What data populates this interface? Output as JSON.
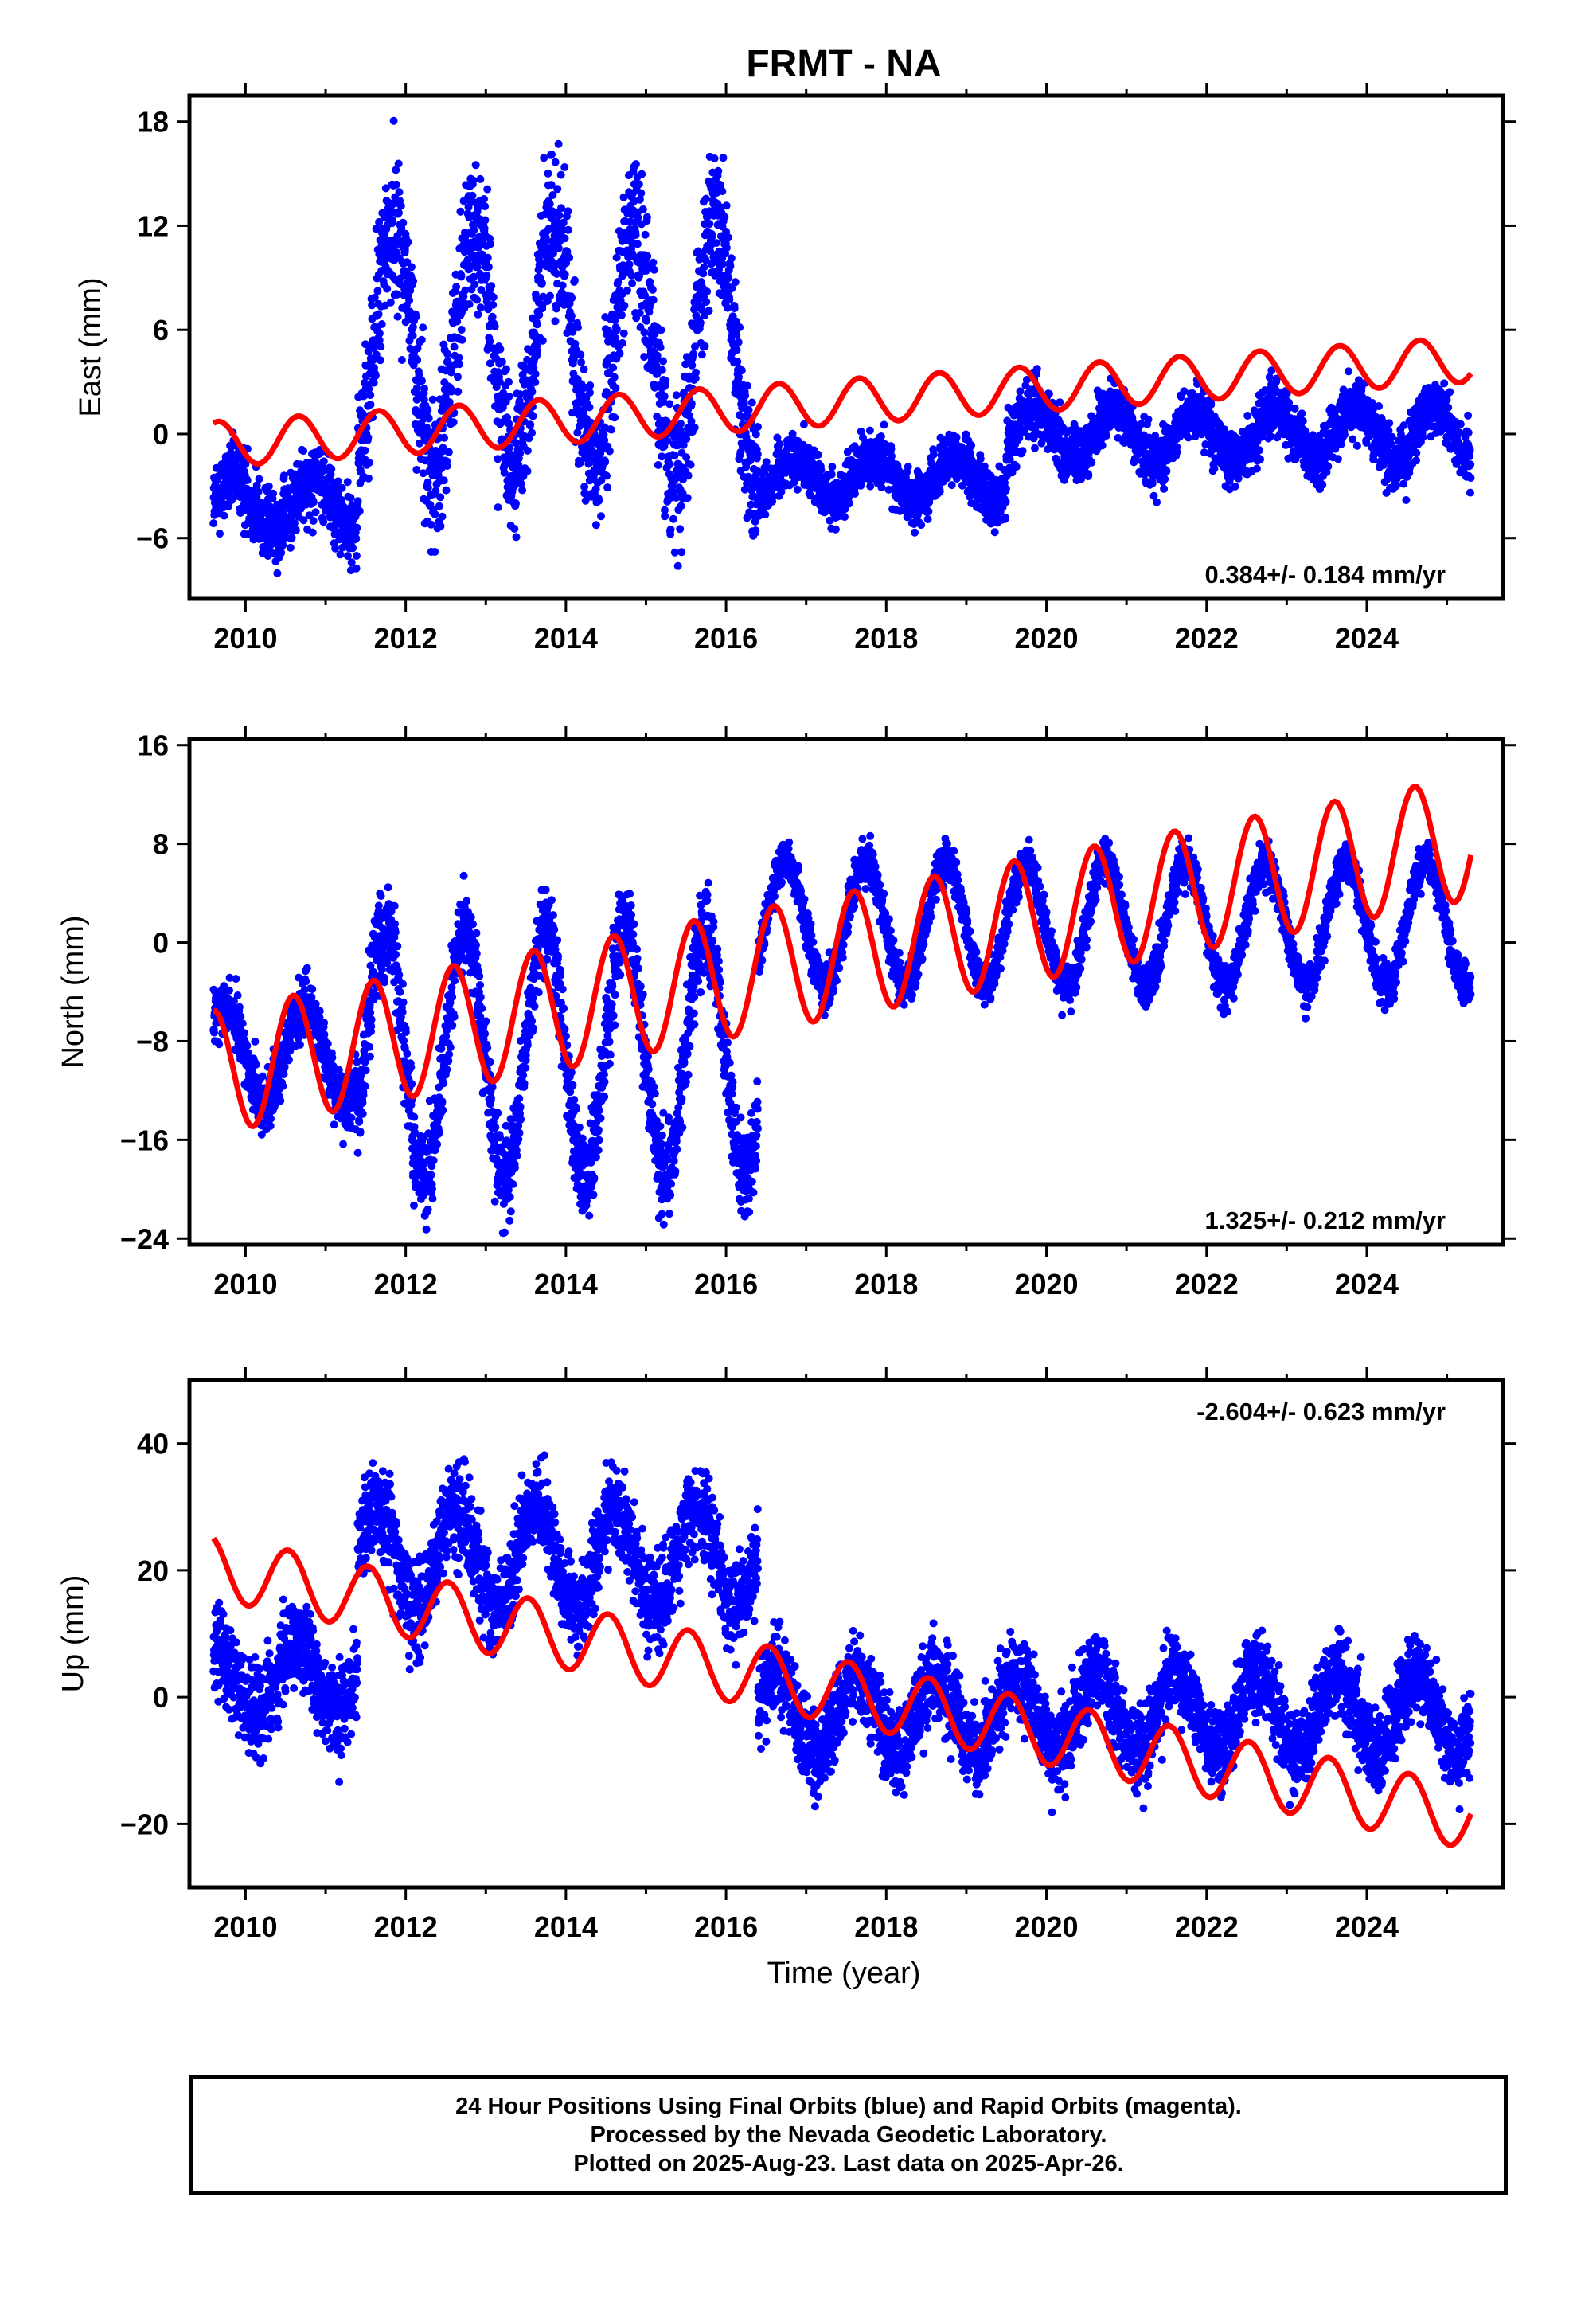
{
  "title": "FRMT - NA",
  "colors": {
    "observations": "#0000ff",
    "model": "#ff0000",
    "axes": "#000000"
  },
  "x_axis": {
    "label": "Time (year)",
    "ticks": [
      "2010",
      "2012",
      "2014",
      "2016",
      "2018",
      "2020",
      "2022",
      "2024"
    ]
  },
  "chart_data": [
    {
      "type": "scatter",
      "component": "East",
      "ylabel": "East (mm)",
      "yticks": [
        "18",
        "12",
        "6",
        "0",
        "-6"
      ],
      "ylim": [
        -9.5,
        19.5
      ],
      "xlim": [
        2009.3,
        2025.7
      ],
      "velocity_label": "0.384+/- 0.184 mm/yr",
      "grid": false,
      "series": [
        {
          "kind": "points",
          "color": "blue",
          "segments": [
            {
              "from": 2009.6,
              "to": 2011.4,
              "baseline": -4.0,
              "amplitude": 1.5,
              "scatter": 1.8
            },
            {
              "from": 2011.4,
              "to": 2016.4,
              "baseline": 5.0,
              "amplitude": 7.0,
              "scatter": 3.5
            },
            {
              "from": 2016.4,
              "to": 2019.5,
              "baseline": -2.5,
              "amplitude": 1.2,
              "scatter": 1.3
            },
            {
              "from": 2019.5,
              "to": 2025.3,
              "baseline": 0.0,
              "amplitude": 1.5,
              "scatter": 1.4
            }
          ]
        },
        {
          "kind": "model",
          "color": "red",
          "x": [
            2009.6,
            2025.3
          ],
          "y_start": -0.6,
          "y_end": 4.3,
          "amplitude": 1.3
        }
      ]
    },
    {
      "type": "scatter",
      "component": "North",
      "ylabel": "North (mm)",
      "yticks": [
        "16",
        "8",
        "0",
        "-8",
        "-16",
        "-24"
      ],
      "ylim": [
        -24.5,
        16.5
      ],
      "xlim": [
        2009.3,
        2025.7
      ],
      "velocity_label": "1.325+/- 0.212 mm/yr",
      "grid": false,
      "series": [
        {
          "kind": "points",
          "color": "blue",
          "segments": [
            {
              "from": 2009.6,
              "to": 2011.4,
              "baseline": -9.0,
              "amplitude": 4.0,
              "scatter": 2.0
            },
            {
              "from": 2011.4,
              "to": 2016.4,
              "baseline": -9.0,
              "amplitude": 10.0,
              "scatter": 3.0
            },
            {
              "from": 2016.4,
              "to": 2025.3,
              "baseline": 1.5,
              "amplitude": 5.0,
              "scatter": 1.4
            }
          ]
        },
        {
          "kind": "model",
          "color": "red",
          "x": [
            2009.6,
            2025.3
          ],
          "y_start": -10.5,
          "y_end": 8.5,
          "amplitude": 5.0
        }
      ]
    },
    {
      "type": "scatter",
      "component": "Up",
      "ylabel": "Up (mm)",
      "yticks": [
        "40",
        "20",
        "0",
        "-20"
      ],
      "ylim": [
        -30,
        50
      ],
      "xlim": [
        2009.3,
        2025.7
      ],
      "velocity_label": "-2.604+/- 0.623 mm/yr",
      "grid": false,
      "series": [
        {
          "kind": "points",
          "color": "blue",
          "segments": [
            {
              "from": 2009.6,
              "to": 2011.4,
              "baseline": 3.0,
              "amplitude": 5.0,
              "scatter": 6.0
            },
            {
              "from": 2011.4,
              "to": 2016.4,
              "baseline": 22.0,
              "amplitude": 8.0,
              "scatter": 6.0
            },
            {
              "from": 2016.4,
              "to": 2025.3,
              "baseline": -2.5,
              "amplitude": 6.0,
              "scatter": 5.5
            }
          ]
        },
        {
          "kind": "model",
          "color": "red",
          "x": [
            2009.6,
            2025.3
          ],
          "y_start": 20.5,
          "y_end": -19.0,
          "amplitude": 5.0
        }
      ]
    }
  ],
  "footer": {
    "line1": "24 Hour Positions Using Final Orbits (blue) and Rapid Orbits (magenta).",
    "line2": "Processed by the Nevada Geodetic Laboratory.",
    "line3": "Plotted on 2025-Aug-23. Last data on 2025-Apr-26."
  }
}
